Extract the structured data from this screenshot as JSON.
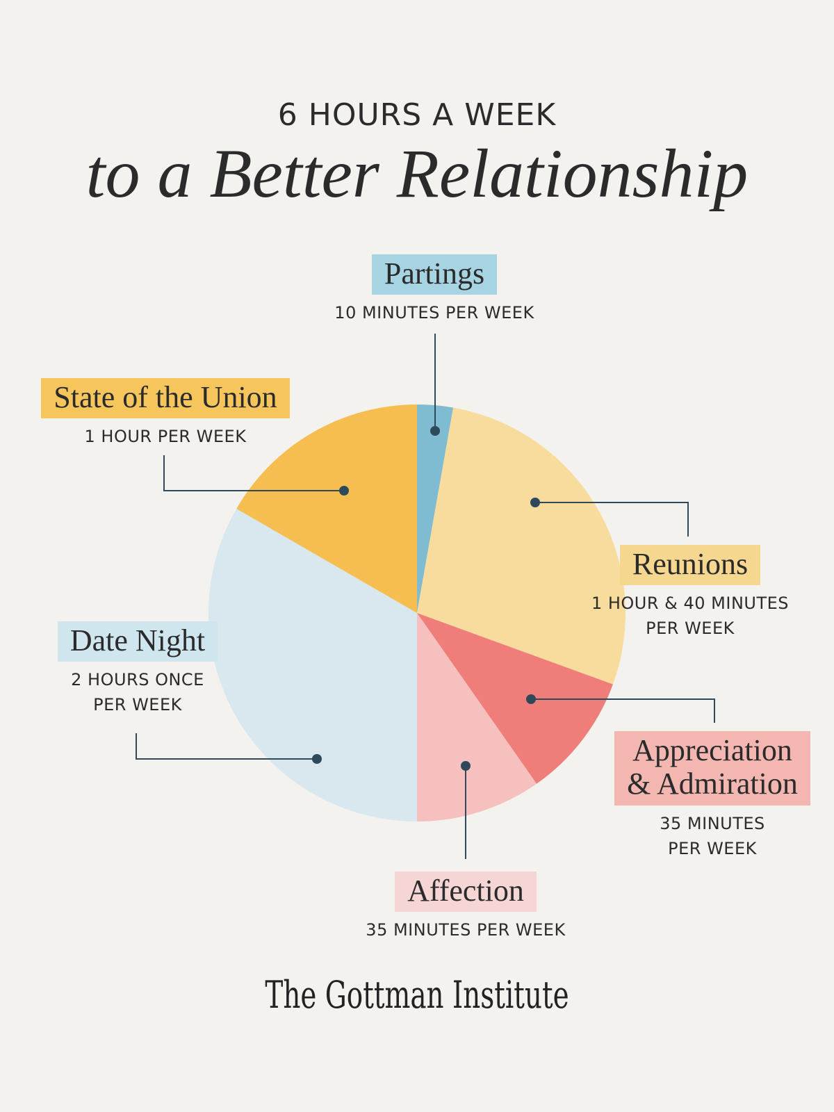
{
  "header": {
    "line1": "6 HOURS A WEEK",
    "line2": "to a Better Relationship"
  },
  "footer": {
    "brand": "The Gottman Institute"
  },
  "chart_data": {
    "type": "pie",
    "unit": "minutes per week",
    "slices": [
      {
        "label": "Partings",
        "value": 10,
        "color": "#7fbcd2",
        "detail": "10 MINUTES PER WEEK",
        "tag_color": "#a7d4e3"
      },
      {
        "label": "Reunions",
        "value": 100,
        "color": "#f7dc9d",
        "detail": "1 HOUR & 40 MINUTES PER WEEK",
        "tag_color": "#f6d78f"
      },
      {
        "label": "Appreciation & Admiration",
        "value": 35,
        "color": "#ef7e7a",
        "detail": "35 MINUTES PER WEEK",
        "tag_color": "#f3b6b1"
      },
      {
        "label": "Affection",
        "value": 35,
        "color": "#f6c0bf",
        "detail": "35 MINUTES PER WEEK",
        "tag_color": "#f5d6d4"
      },
      {
        "label": "Date Night",
        "value": 120,
        "color": "#d8e8ee",
        "detail": "2 HOURS ONCE PER WEEK",
        "tag_color": "#cfe6ee"
      },
      {
        "label": "State of the Union",
        "value": 60,
        "color": "#f6bd50",
        "detail": "1 HOUR PER WEEK",
        "tag_color": "#f6c55c"
      }
    ],
    "labels_text": {
      "partings": {
        "tag": "Partings",
        "detail": "10 MINUTES PER WEEK"
      },
      "reunions": {
        "tag": "Reunions",
        "detail1": "1 HOUR & 40 MINUTES",
        "detail2": "PER WEEK"
      },
      "appreciation": {
        "tag1": "Appreciation",
        "tag2": "& Admiration",
        "detail1": "35 MINUTES",
        "detail2": "PER WEEK"
      },
      "affection": {
        "tag": "Affection",
        "detail": "35 MINUTES PER WEEK"
      },
      "date_night": {
        "tag": "Date Night",
        "detail1": "2 HOURS ONCE",
        "detail2": "PER WEEK"
      },
      "state_union": {
        "tag": "State of the Union",
        "detail": "1 HOUR PER WEEK"
      }
    },
    "colors": {
      "leader": "#2e4a5a",
      "background": "#f4f2ee"
    }
  }
}
